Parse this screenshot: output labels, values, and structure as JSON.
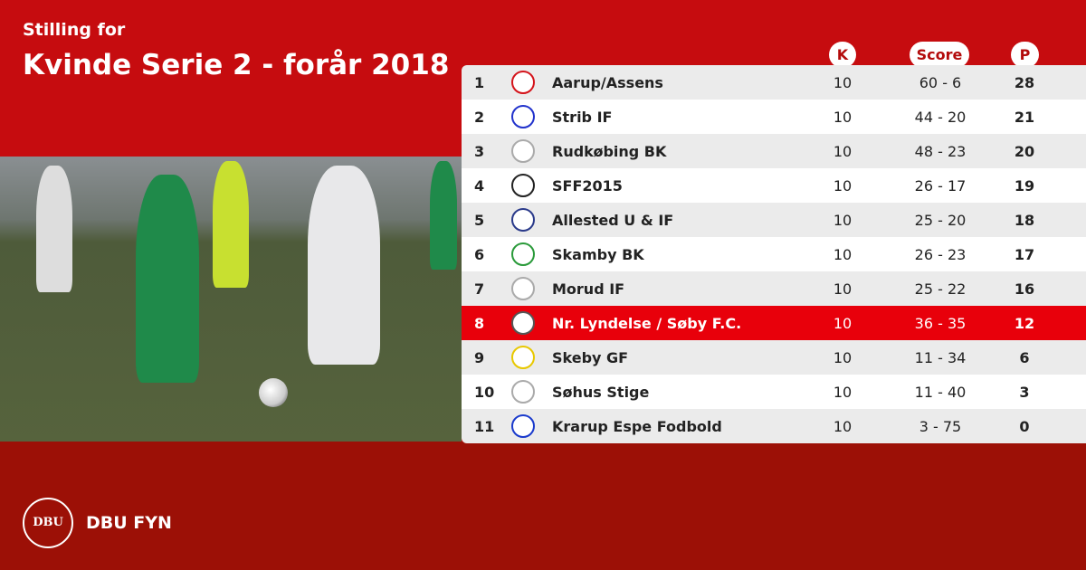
{
  "header": {
    "subtitle": "Stilling for",
    "title": "Kvinde Serie 2 - forår 2018"
  },
  "columns": {
    "k": "K",
    "score": "Score",
    "p": "P"
  },
  "rows": [
    {
      "pos": "1",
      "team": "Aarup/Assens",
      "k": "10",
      "score": "60 - 6",
      "p": "28",
      "logo_color": "#d4141b"
    },
    {
      "pos": "2",
      "team": "Strib IF",
      "k": "10",
      "score": "44 - 20",
      "p": "21",
      "logo_color": "#2233cc"
    },
    {
      "pos": "3",
      "team": "Rudkøbing BK",
      "k": "10",
      "score": "48 - 23",
      "p": "20",
      "logo_color": "#aaaaaa"
    },
    {
      "pos": "4",
      "team": "SFF2015",
      "k": "10",
      "score": "26 - 17",
      "p": "19",
      "logo_color": "#222222"
    },
    {
      "pos": "5",
      "team": "Allested U & IF",
      "k": "10",
      "score": "25 - 20",
      "p": "18",
      "logo_color": "#2a3a8a"
    },
    {
      "pos": "6",
      "team": "Skamby BK",
      "k": "10",
      "score": "26 - 23",
      "p": "17",
      "logo_color": "#2a9a3a"
    },
    {
      "pos": "7",
      "team": "Morud IF",
      "k": "10",
      "score": "25 - 22",
      "p": "16",
      "logo_color": "#aaaaaa"
    },
    {
      "pos": "8",
      "team": "Nr. Lyndelse / Søby F.C.",
      "k": "10",
      "score": "36 - 35",
      "p": "12",
      "logo_color": "#555555"
    },
    {
      "pos": "9",
      "team": "Skeby GF",
      "k": "10",
      "score": "11 - 34",
      "p": "6",
      "logo_color": "#e8c800"
    },
    {
      "pos": "10",
      "team": "Søhus Stige",
      "k": "10",
      "score": "11 - 40",
      "p": "3",
      "logo_color": "#aaaaaa"
    },
    {
      "pos": "11",
      "team": "Krarup Espe Fodbold",
      "k": "10",
      "score": "3 - 75",
      "p": "0",
      "logo_color": "#1a3acc"
    }
  ],
  "highlight_row": 8,
  "footer": {
    "brand": "DBU FYN",
    "seal_text": "DBU"
  },
  "colors": {
    "top": "#c60c0f",
    "bottom": "#9c1006",
    "highlight": "#e8000b"
  }
}
